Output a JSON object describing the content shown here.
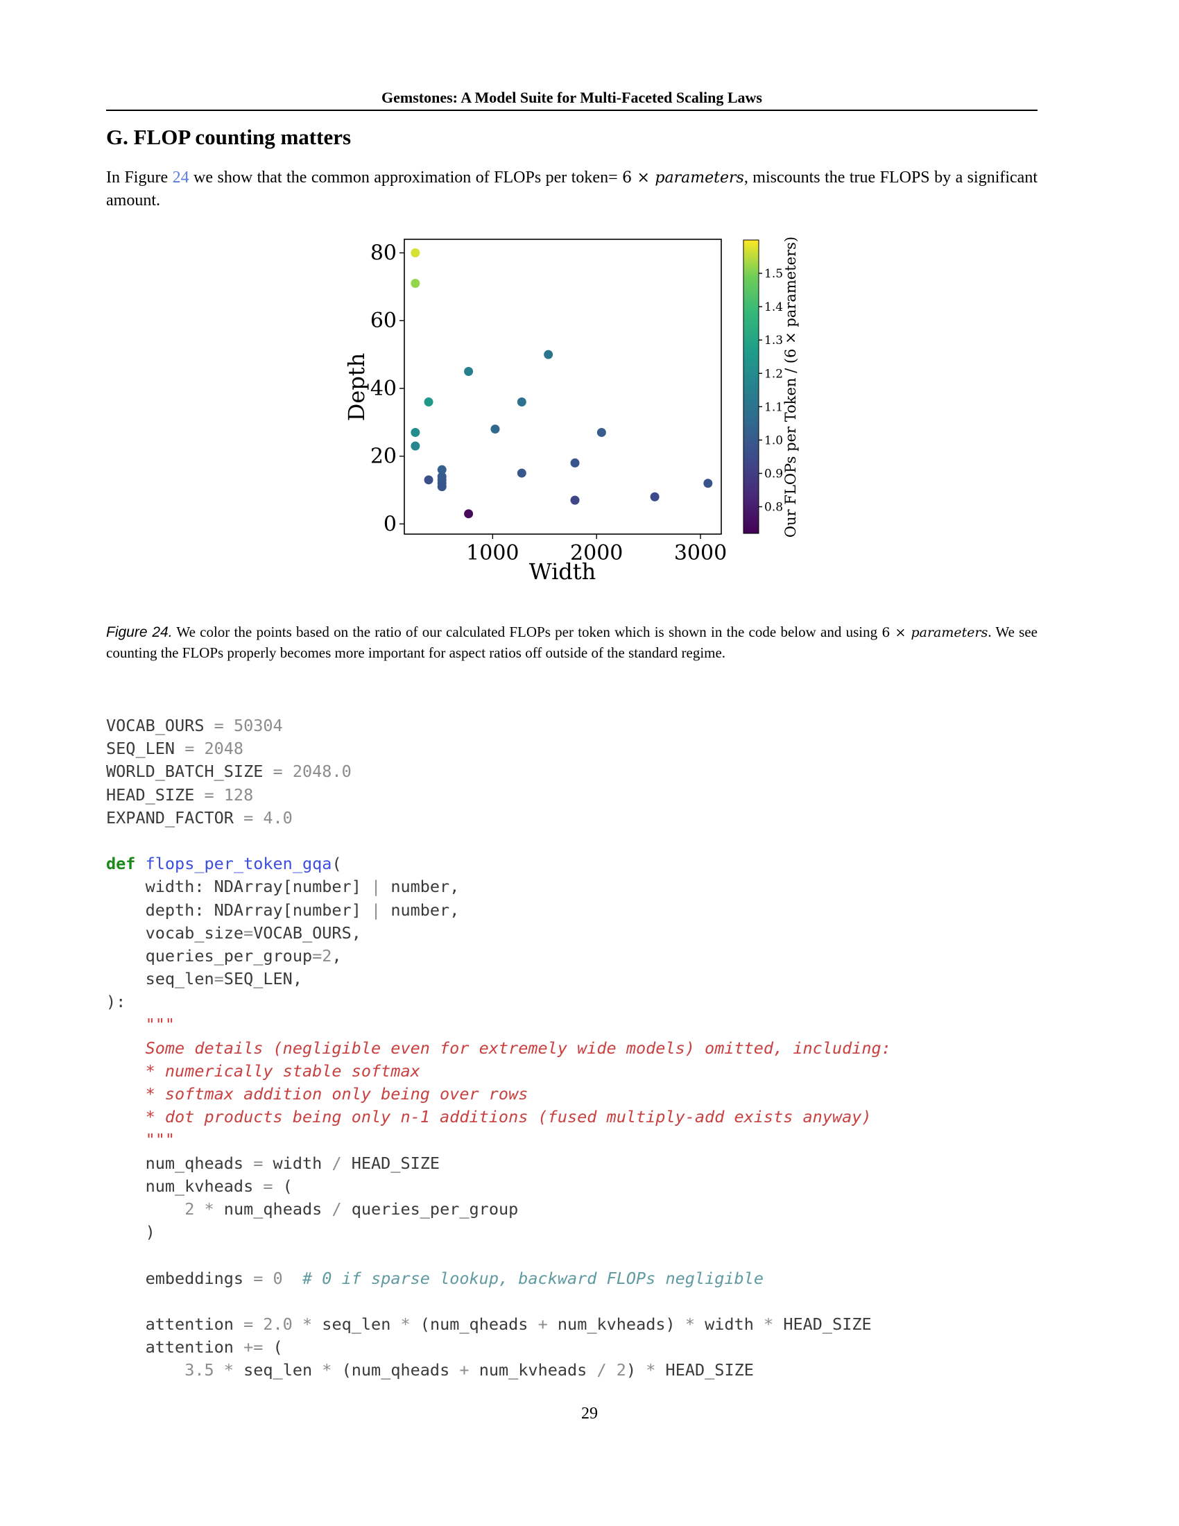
{
  "header": {
    "running_title": "Gemstones: A Model Suite for Multi-Faceted Scaling Laws"
  },
  "section": {
    "title": "G. FLOP counting matters"
  },
  "intro": {
    "text_before_ref": "In Figure ",
    "ref": "24",
    "text_after_ref": " we show that the common approximation of FLOPs per token= ",
    "math_six": "6 × ",
    "math_var": "parameters",
    "text_end": ", miscounts the true FLOPS by a significant amount."
  },
  "caption": {
    "label": "Figure 24.",
    "text_start": " We color the points based on the ratio of our calculated FLOPs per token which is shown in the code below and using ",
    "math_six": "6 × ",
    "math_var": "parameters",
    "text_end": ". We see counting the FLOPs properly becomes more important for aspect ratios off outside of the standard regime."
  },
  "chart_data": {
    "type": "scatter",
    "title": "",
    "xlabel": "Width",
    "ylabel": "Depth",
    "xlim": [
      150,
      3200
    ],
    "ylim": [
      -3,
      84
    ],
    "xticks": [
      "1000",
      "2000",
      "3000"
    ],
    "yticks": [
      "0",
      "20",
      "40",
      "60",
      "80"
    ],
    "colorbar": {
      "label": "Our FLOPs per Token / (6 × parameters)",
      "range": [
        0.72,
        1.6
      ],
      "ticks": [
        "0.8",
        "0.9",
        "1.0",
        "1.1",
        "1.2",
        "1.3",
        "1.4",
        "1.5"
      ],
      "colormap": "viridis"
    },
    "points": [
      {
        "x": 256,
        "y": 80,
        "ratio": 1.57
      },
      {
        "x": 256,
        "y": 71,
        "ratio": 1.52
      },
      {
        "x": 256,
        "y": 27,
        "ratio": 1.2
      },
      {
        "x": 256,
        "y": 23,
        "ratio": 1.18
      },
      {
        "x": 384,
        "y": 36,
        "ratio": 1.25
      },
      {
        "x": 384,
        "y": 13,
        "ratio": 0.96
      },
      {
        "x": 512,
        "y": 16,
        "ratio": 1.02
      },
      {
        "x": 512,
        "y": 14,
        "ratio": 1.01
      },
      {
        "x": 512,
        "y": 13,
        "ratio": 1.0
      },
      {
        "x": 512,
        "y": 12,
        "ratio": 0.99
      },
      {
        "x": 512,
        "y": 11,
        "ratio": 0.98
      },
      {
        "x": 768,
        "y": 45,
        "ratio": 1.15
      },
      {
        "x": 768,
        "y": 3,
        "ratio": 0.74
      },
      {
        "x": 1024,
        "y": 28,
        "ratio": 1.05
      },
      {
        "x": 1280,
        "y": 36,
        "ratio": 1.09
      },
      {
        "x": 1280,
        "y": 15,
        "ratio": 0.99
      },
      {
        "x": 1536,
        "y": 50,
        "ratio": 1.11
      },
      {
        "x": 1792,
        "y": 18,
        "ratio": 0.98
      },
      {
        "x": 1792,
        "y": 7,
        "ratio": 0.93
      },
      {
        "x": 2048,
        "y": 27,
        "ratio": 1.01
      },
      {
        "x": 2560,
        "y": 8,
        "ratio": 0.94
      },
      {
        "x": 3072,
        "y": 12,
        "ratio": 0.98
      }
    ]
  },
  "code": {
    "lines": [
      [
        [
          "VOCAB_OURS ",
          ""
        ],
        [
          "= ",
          "op"
        ],
        [
          "50304",
          "num"
        ]
      ],
      [
        [
          "SEQ_LEN ",
          ""
        ],
        [
          "= ",
          "op"
        ],
        [
          "2048",
          "num"
        ]
      ],
      [
        [
          "WORLD_BATCH_SIZE ",
          ""
        ],
        [
          "= ",
          "op"
        ],
        [
          "2048.0",
          "num"
        ]
      ],
      [
        [
          "HEAD_SIZE ",
          ""
        ],
        [
          "= ",
          "op"
        ],
        [
          "128",
          "num"
        ]
      ],
      [
        [
          "EXPAND_FACTOR ",
          ""
        ],
        [
          "= ",
          "op"
        ],
        [
          "4.0",
          "num"
        ]
      ],
      [],
      [
        [
          "def",
          "kw"
        ],
        [
          " ",
          ""
        ],
        [
          "flops_per_token_gqa",
          "fn"
        ],
        [
          "(",
          ""
        ]
      ],
      [
        [
          "    width: NDArray[number] ",
          ""
        ],
        [
          "|",
          "op"
        ],
        [
          " number,",
          ""
        ]
      ],
      [
        [
          "    depth: NDArray[number] ",
          ""
        ],
        [
          "|",
          "op"
        ],
        [
          " number,",
          ""
        ]
      ],
      [
        [
          "    vocab_size",
          ""
        ],
        [
          "=",
          "op"
        ],
        [
          "VOCAB_OURS,",
          ""
        ]
      ],
      [
        [
          "    queries_per_group",
          ""
        ],
        [
          "=",
          "op"
        ],
        [
          "2",
          "num"
        ],
        [
          ",",
          ""
        ]
      ],
      [
        [
          "    seq_len",
          ""
        ],
        [
          "=",
          "op"
        ],
        [
          "SEQ_LEN,",
          ""
        ]
      ],
      [
        [
          "):",
          ""
        ]
      ],
      [
        [
          "    \"\"\"",
          "doc"
        ]
      ],
      [
        [
          "    Some details (negligible even for extremely wide models) omitted, including:",
          "doc"
        ]
      ],
      [
        [
          "    * numerically stable softmax",
          "doc"
        ]
      ],
      [
        [
          "    * softmax addition only being over rows",
          "doc"
        ]
      ],
      [
        [
          "    * dot products being only n-1 additions (fused multiply-add exists anyway)",
          "doc"
        ]
      ],
      [
        [
          "    \"\"\"",
          "doc"
        ]
      ],
      [
        [
          "    num_qheads ",
          ""
        ],
        [
          "=",
          "op"
        ],
        [
          " width ",
          ""
        ],
        [
          "/",
          "op"
        ],
        [
          " HEAD_SIZE",
          ""
        ]
      ],
      [
        [
          "    num_kvheads ",
          ""
        ],
        [
          "=",
          "op"
        ],
        [
          " (",
          ""
        ]
      ],
      [
        [
          "        ",
          ""
        ],
        [
          "2",
          "num"
        ],
        [
          " ",
          ""
        ],
        [
          "*",
          "op"
        ],
        [
          " num_qheads ",
          ""
        ],
        [
          "/",
          "op"
        ],
        [
          " queries_per_group",
          ""
        ]
      ],
      [
        [
          "    )",
          ""
        ]
      ],
      [],
      [
        [
          "    embeddings ",
          ""
        ],
        [
          "=",
          "op"
        ],
        [
          " ",
          ""
        ],
        [
          "0",
          "num"
        ],
        [
          "  ",
          ""
        ],
        [
          "# 0 if sparse lookup, backward FLOPs negligible",
          "com"
        ]
      ],
      [],
      [
        [
          "    attention ",
          ""
        ],
        [
          "=",
          "op"
        ],
        [
          " ",
          ""
        ],
        [
          "2.0",
          "num"
        ],
        [
          " ",
          ""
        ],
        [
          "*",
          "op"
        ],
        [
          " seq_len ",
          ""
        ],
        [
          "*",
          "op"
        ],
        [
          " (num_qheads ",
          ""
        ],
        [
          "+",
          "op"
        ],
        [
          " num_kvheads) ",
          ""
        ],
        [
          "*",
          "op"
        ],
        [
          " width ",
          ""
        ],
        [
          "*",
          "op"
        ],
        [
          " HEAD_SIZE",
          ""
        ]
      ],
      [
        [
          "    attention ",
          ""
        ],
        [
          "+=",
          "op"
        ],
        [
          " (",
          ""
        ]
      ],
      [
        [
          "        ",
          ""
        ],
        [
          "3.5",
          "num"
        ],
        [
          " ",
          ""
        ],
        [
          "*",
          "op"
        ],
        [
          " seq_len ",
          ""
        ],
        [
          "*",
          "op"
        ],
        [
          " (num_qheads ",
          ""
        ],
        [
          "+",
          "op"
        ],
        [
          " num_kvheads ",
          ""
        ],
        [
          "/",
          "op"
        ],
        [
          " ",
          ""
        ],
        [
          "2",
          "num"
        ],
        [
          ") ",
          ""
        ],
        [
          "*",
          "op"
        ],
        [
          " HEAD_SIZE",
          ""
        ]
      ]
    ]
  },
  "footer": {
    "page_number": "29"
  }
}
